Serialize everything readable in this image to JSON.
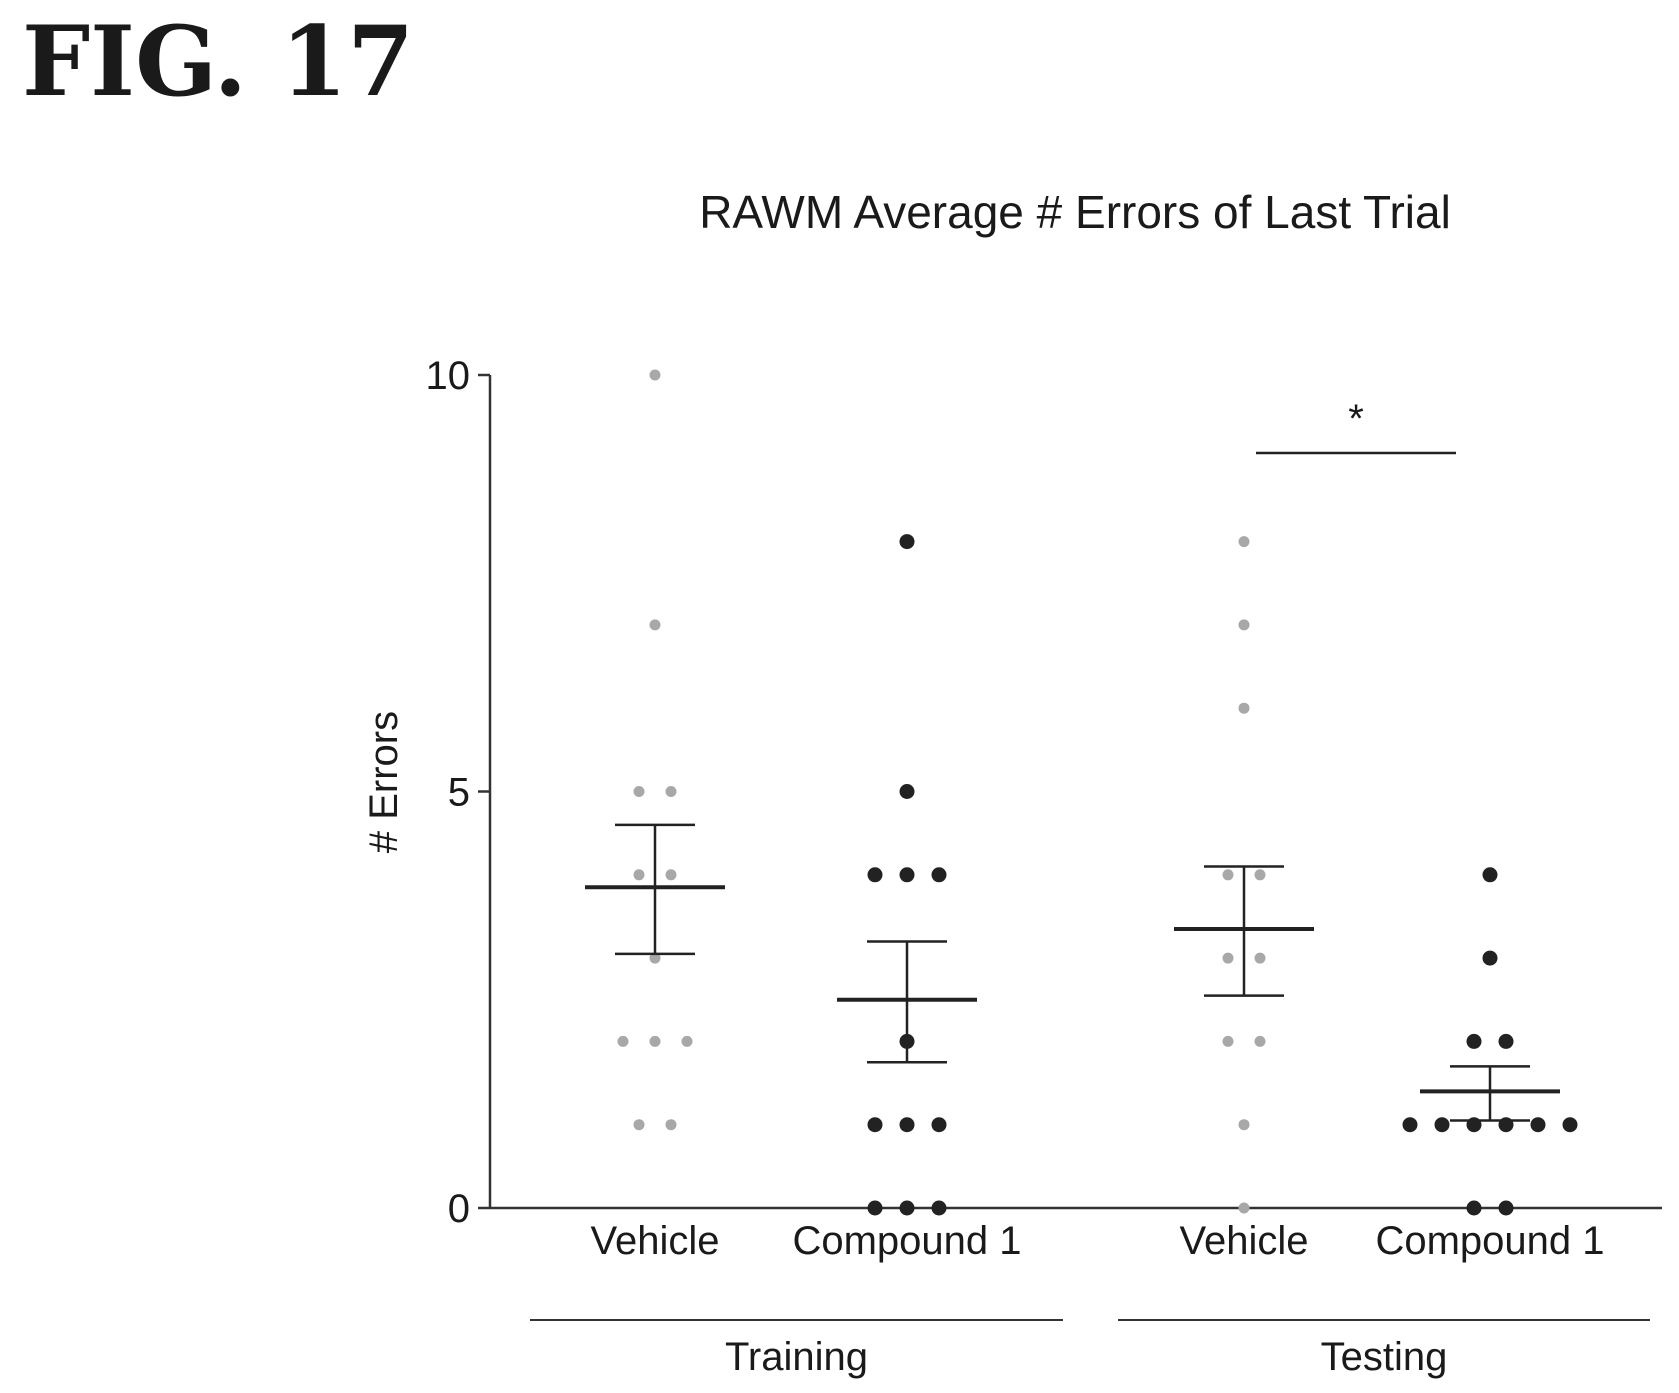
{
  "figure_label": "FIG. 17",
  "chart_data": {
    "type": "scatter",
    "title": "RAWM Average # Errors of Last Trial",
    "xlabel": "",
    "ylabel": "# Errors",
    "ylim": [
      0,
      10
    ],
    "yticks": [
      0,
      5,
      10
    ],
    "grid": false,
    "legend": "none",
    "groups": [
      {
        "name": "Training",
        "categories": [
          "Vehicle",
          "Compound 1"
        ]
      },
      {
        "name": "Testing",
        "categories": [
          "Vehicle",
          "Compound 1"
        ]
      }
    ],
    "series": [
      {
        "category": "Vehicle",
        "group": "Training",
        "color": "#a8a8a8",
        "values": [
          10,
          7,
          5,
          5,
          4,
          4,
          3,
          2,
          2,
          2,
          1,
          1
        ],
        "mean": 3.85,
        "sem_upper": 4.6,
        "sem_lower": 3.05
      },
      {
        "category": "Compound 1",
        "group": "Training",
        "color": "#222222",
        "values": [
          8,
          5,
          4,
          4,
          4,
          2,
          1,
          1,
          1,
          0,
          0,
          0
        ],
        "mean": 2.5,
        "sem_upper": 3.2,
        "sem_lower": 1.75
      },
      {
        "category": "Vehicle",
        "group": "Testing",
        "color": "#a8a8a8",
        "values": [
          8,
          7,
          6,
          4,
          4,
          3,
          3,
          2,
          2,
          1,
          0
        ],
        "mean": 3.35,
        "sem_upper": 4.1,
        "sem_lower": 2.55
      },
      {
        "category": "Compound 1",
        "group": "Testing",
        "color": "#222222",
        "values": [
          4,
          3,
          2,
          2,
          1,
          1,
          1,
          1,
          1,
          1,
          0,
          0
        ],
        "mean": 1.4,
        "sem_upper": 1.7,
        "sem_lower": 1.05
      }
    ],
    "significance": [
      {
        "between": [
          "Vehicle (Testing)",
          "Compound 1 (Testing)"
        ],
        "label": "*"
      }
    ]
  }
}
